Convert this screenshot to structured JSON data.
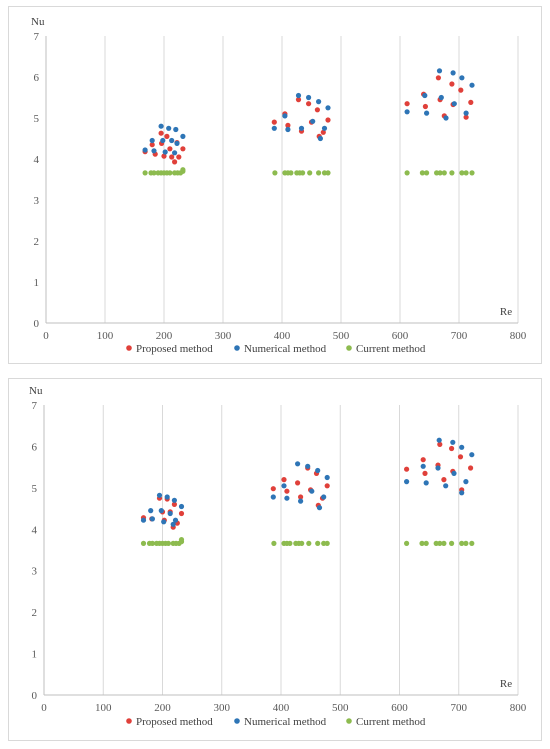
{
  "chart_data": [
    {
      "type": "scatter",
      "title": "",
      "xlabel": "Re",
      "ylabel": "Nu",
      "xlim": [
        0,
        800
      ],
      "ylim": [
        0,
        7
      ],
      "x_ticks": [
        "0",
        "100",
        "200",
        "300",
        "400",
        "500",
        "600",
        "700",
        "800"
      ],
      "y_ticks": [
        "0",
        "1",
        "2",
        "3",
        "4",
        "5",
        "6",
        "7"
      ],
      "grid": "vertical",
      "legend_position": "bottom",
      "series": [
        {
          "name": "Proposed method",
          "color": "#e0403a",
          "points": [
            [
              168,
              4.18
            ],
            [
              180,
              4.35
            ],
            [
              185,
              4.12
            ],
            [
              195,
              4.63
            ],
            [
              196,
              4.38
            ],
            [
              200,
              4.07
            ],
            [
              205,
              4.55
            ],
            [
              210,
              4.25
            ],
            [
              213,
              4.05
            ],
            [
              218,
              3.93
            ],
            [
              222,
              4.4
            ],
            [
              225,
              4.05
            ],
            [
              232,
              4.25
            ],
            [
              387,
              4.9
            ],
            [
              405,
              5.1
            ],
            [
              410,
              4.82
            ],
            [
              428,
              5.45
            ],
            [
              433,
              4.68
            ],
            [
              445,
              5.35
            ],
            [
              450,
              4.9
            ],
            [
              460,
              5.2
            ],
            [
              463,
              4.55
            ],
            [
              470,
              4.65
            ],
            [
              478,
              4.95
            ],
            [
              612,
              5.35
            ],
            [
              640,
              5.58
            ],
            [
              643,
              5.28
            ],
            [
              665,
              5.98
            ],
            [
              668,
              5.45
            ],
            [
              675,
              5.05
            ],
            [
              688,
              5.83
            ],
            [
              690,
              5.33
            ],
            [
              703,
              5.68
            ],
            [
              712,
              5.02
            ],
            [
              720,
              5.38
            ]
          ]
        },
        {
          "name": "Numerical method",
          "color": "#2e75b6",
          "points": [
            [
              168,
              4.22
            ],
            [
              180,
              4.45
            ],
            [
              183,
              4.2
            ],
            [
              195,
              4.8
            ],
            [
              198,
              4.45
            ],
            [
              202,
              4.17
            ],
            [
              208,
              4.75
            ],
            [
              213,
              4.45
            ],
            [
              218,
              4.15
            ],
            [
              220,
              4.72
            ],
            [
              222,
              4.38
            ],
            [
              232,
              4.55
            ],
            [
              387,
              4.75
            ],
            [
              405,
              5.05
            ],
            [
              410,
              4.72
            ],
            [
              428,
              5.55
            ],
            [
              433,
              4.75
            ],
            [
              445,
              5.5
            ],
            [
              452,
              4.92
            ],
            [
              462,
              5.4
            ],
            [
              465,
              4.5
            ],
            [
              472,
              4.75
            ],
            [
              478,
              5.25
            ],
            [
              612,
              5.15
            ],
            [
              642,
              5.55
            ],
            [
              645,
              5.12
            ],
            [
              667,
              6.15
            ],
            [
              670,
              5.5
            ],
            [
              678,
              5.0
            ],
            [
              690,
              6.1
            ],
            [
              692,
              5.35
            ],
            [
              705,
              5.98
            ],
            [
              712,
              5.12
            ],
            [
              722,
              5.8
            ]
          ]
        },
        {
          "name": "Current method",
          "color": "#8dbb4f",
          "points": [
            [
              168,
              3.66
            ],
            [
              178,
              3.66
            ],
            [
              183,
              3.66
            ],
            [
              190,
              3.66
            ],
            [
              195,
              3.66
            ],
            [
              200,
              3.66
            ],
            [
              205,
              3.66
            ],
            [
              210,
              3.66
            ],
            [
              218,
              3.66
            ],
            [
              223,
              3.66
            ],
            [
              228,
              3.66
            ],
            [
              232,
              3.7
            ],
            [
              232,
              3.74
            ],
            [
              388,
              3.66
            ],
            [
              405,
              3.66
            ],
            [
              410,
              3.66
            ],
            [
              415,
              3.66
            ],
            [
              425,
              3.66
            ],
            [
              430,
              3.66
            ],
            [
              435,
              3.66
            ],
            [
              447,
              3.66
            ],
            [
              462,
              3.66
            ],
            [
              472,
              3.66
            ],
            [
              478,
              3.66
            ],
            [
              612,
              3.66
            ],
            [
              638,
              3.66
            ],
            [
              645,
              3.66
            ],
            [
              662,
              3.66
            ],
            [
              668,
              3.66
            ],
            [
              675,
              3.66
            ],
            [
              688,
              3.66
            ],
            [
              705,
              3.66
            ],
            [
              712,
              3.66
            ],
            [
              722,
              3.66
            ]
          ]
        }
      ]
    },
    {
      "type": "scatter",
      "title": "",
      "xlabel": "Re",
      "ylabel": "Nu",
      "xlim": [
        0,
        800
      ],
      "ylim": [
        0,
        7
      ],
      "x_ticks": [
        "0",
        "100",
        "200",
        "300",
        "400",
        "500",
        "600",
        "700",
        "800"
      ],
      "y_ticks": [
        "0",
        "1",
        "2",
        "3",
        "4",
        "5",
        "6",
        "7"
      ],
      "grid": "vertical",
      "legend_position": "bottom",
      "series": [
        {
          "name": "Proposed method",
          "color": "#e0403a",
          "points": [
            [
              168,
              4.28
            ],
            [
              182,
              4.25
            ],
            [
              195,
              4.75
            ],
            [
              200,
              4.42
            ],
            [
              203,
              4.22
            ],
            [
              208,
              4.73
            ],
            [
              213,
              4.42
            ],
            [
              218,
              4.05
            ],
            [
              220,
              4.6
            ],
            [
              225,
              4.15
            ],
            [
              232,
              4.38
            ],
            [
              387,
              4.98
            ],
            [
              405,
              5.2
            ],
            [
              410,
              4.92
            ],
            [
              428,
              5.12
            ],
            [
              433,
              4.78
            ],
            [
              445,
              5.48
            ],
            [
              450,
              4.95
            ],
            [
              460,
              5.35
            ],
            [
              463,
              4.58
            ],
            [
              470,
              4.75
            ],
            [
              478,
              5.05
            ],
            [
              612,
              5.45
            ],
            [
              640,
              5.68
            ],
            [
              643,
              5.35
            ],
            [
              665,
              5.55
            ],
            [
              668,
              6.05
            ],
            [
              675,
              5.2
            ],
            [
              688,
              5.95
            ],
            [
              690,
              5.4
            ],
            [
              703,
              5.75
            ],
            [
              705,
              4.95
            ],
            [
              720,
              5.48
            ]
          ]
        },
        {
          "name": "Numerical method",
          "color": "#2e75b6",
          "points": [
            [
              168,
              4.22
            ],
            [
              180,
              4.45
            ],
            [
              183,
              4.25
            ],
            [
              195,
              4.82
            ],
            [
              198,
              4.45
            ],
            [
              202,
              4.18
            ],
            [
              208,
              4.78
            ],
            [
              213,
              4.38
            ],
            [
              218,
              4.12
            ],
            [
              220,
              4.7
            ],
            [
              222,
              4.22
            ],
            [
              232,
              4.55
            ],
            [
              387,
              4.78
            ],
            [
              405,
              5.05
            ],
            [
              410,
              4.75
            ],
            [
              428,
              5.58
            ],
            [
              433,
              4.68
            ],
            [
              445,
              5.52
            ],
            [
              452,
              4.92
            ],
            [
              462,
              5.42
            ],
            [
              465,
              4.52
            ],
            [
              472,
              4.78
            ],
            [
              478,
              5.25
            ],
            [
              612,
              5.15
            ],
            [
              640,
              5.52
            ],
            [
              645,
              5.12
            ],
            [
              665,
              5.48
            ],
            [
              667,
              6.15
            ],
            [
              678,
              5.05
            ],
            [
              690,
              6.1
            ],
            [
              692,
              5.35
            ],
            [
              705,
              5.98
            ],
            [
              705,
              4.88
            ],
            [
              712,
              5.15
            ],
            [
              722,
              5.8
            ]
          ]
        },
        {
          "name": "Current method",
          "color": "#8dbb4f",
          "points": [
            [
              168,
              3.66
            ],
            [
              178,
              3.66
            ],
            [
              183,
              3.66
            ],
            [
              190,
              3.66
            ],
            [
              195,
              3.66
            ],
            [
              200,
              3.66
            ],
            [
              205,
              3.66
            ],
            [
              210,
              3.66
            ],
            [
              218,
              3.66
            ],
            [
              223,
              3.66
            ],
            [
              228,
              3.66
            ],
            [
              232,
              3.7
            ],
            [
              232,
              3.75
            ],
            [
              388,
              3.66
            ],
            [
              405,
              3.66
            ],
            [
              410,
              3.66
            ],
            [
              415,
              3.66
            ],
            [
              425,
              3.66
            ],
            [
              430,
              3.66
            ],
            [
              435,
              3.66
            ],
            [
              447,
              3.66
            ],
            [
              462,
              3.66
            ],
            [
              472,
              3.66
            ],
            [
              478,
              3.66
            ],
            [
              612,
              3.66
            ],
            [
              638,
              3.66
            ],
            [
              645,
              3.66
            ],
            [
              662,
              3.66
            ],
            [
              668,
              3.66
            ],
            [
              675,
              3.66
            ],
            [
              688,
              3.66
            ],
            [
              705,
              3.66
            ],
            [
              712,
              3.66
            ],
            [
              722,
              3.66
            ]
          ]
        }
      ]
    }
  ]
}
